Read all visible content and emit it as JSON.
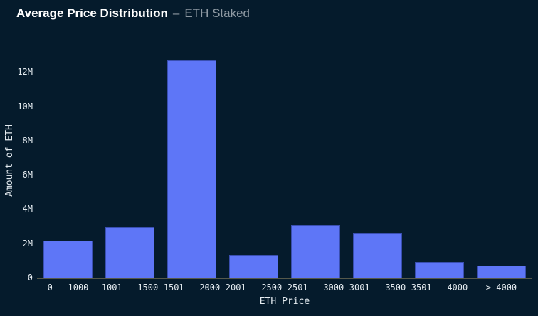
{
  "header": {
    "title": "Average Price Distribution",
    "separator": "–",
    "subtitle": "ETH Staked"
  },
  "chart_data": {
    "type": "bar",
    "title": "Average Price Distribution – ETH Staked",
    "categories": [
      "0 - 1000",
      "1001 - 1500",
      "1501 - 2000",
      "2001 - 2500",
      "2501 - 3000",
      "3001 - 3500",
      "3501 - 4000",
      "> 4000"
    ],
    "values": [
      2.2,
      3.0,
      12.7,
      1.35,
      3.1,
      2.65,
      0.95,
      0.75
    ],
    "values_unit": "millions of ETH",
    "xlabel": "ETH Price",
    "ylabel": "Amount of ETH",
    "y_ticks": [
      {
        "value": 0,
        "label": "0"
      },
      {
        "value": 2,
        "label": "2M"
      },
      {
        "value": 4,
        "label": "4M"
      },
      {
        "value": 6,
        "label": "6M"
      },
      {
        "value": 8,
        "label": "8M"
      },
      {
        "value": 10,
        "label": "10M"
      },
      {
        "value": 12,
        "label": "12M"
      }
    ],
    "ylim": [
      0,
      13.75
    ],
    "grid": "horizontal",
    "legend": "none",
    "colors": {
      "background": "#051B2C",
      "bar": "#5E76F7",
      "bar_edge": "#3A4FB0",
      "gridline": "#112C3D",
      "axis_line": "#55584A",
      "tick_text": "#E4EBF0",
      "title_text": "#FFFFFF",
      "subtitle_text": "#8E99A2"
    }
  }
}
